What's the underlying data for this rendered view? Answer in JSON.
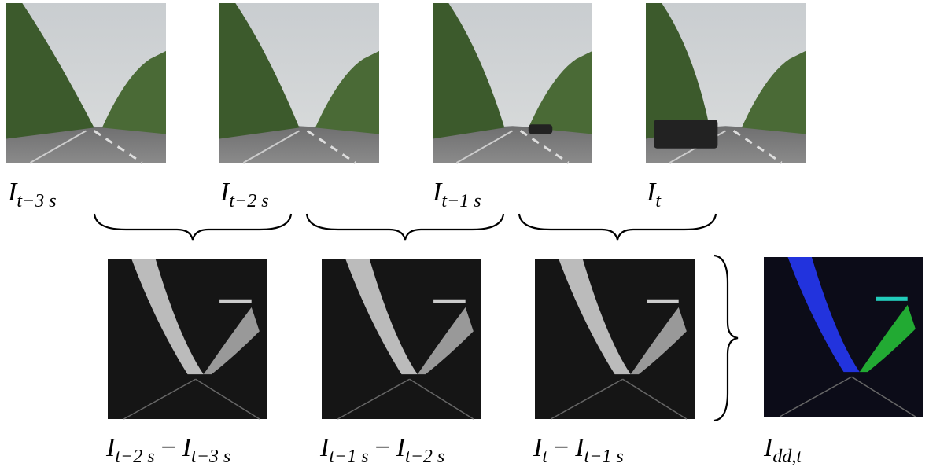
{
  "frames": [
    {
      "base": "I",
      "sub": "t−3 s"
    },
    {
      "base": "I",
      "sub": "t−2 s"
    },
    {
      "base": "I",
      "sub": "t−1 s"
    },
    {
      "base": "I",
      "sub": "t"
    }
  ],
  "differences": [
    {
      "terms": [
        {
          "base": "I",
          "sub": "t−2 s"
        },
        {
          "base": "I",
          "sub": "t−3 s"
        }
      ],
      "operator": "−"
    },
    {
      "terms": [
        {
          "base": "I",
          "sub": "t−1 s"
        },
        {
          "base": "I",
          "sub": "t−2 s"
        }
      ],
      "operator": "−"
    },
    {
      "terms": [
        {
          "base": "I",
          "sub": "t"
        },
        {
          "base": "I",
          "sub": "t−1 s"
        }
      ],
      "operator": "−"
    }
  ],
  "result": {
    "base": "I",
    "sub": "dd,t"
  }
}
